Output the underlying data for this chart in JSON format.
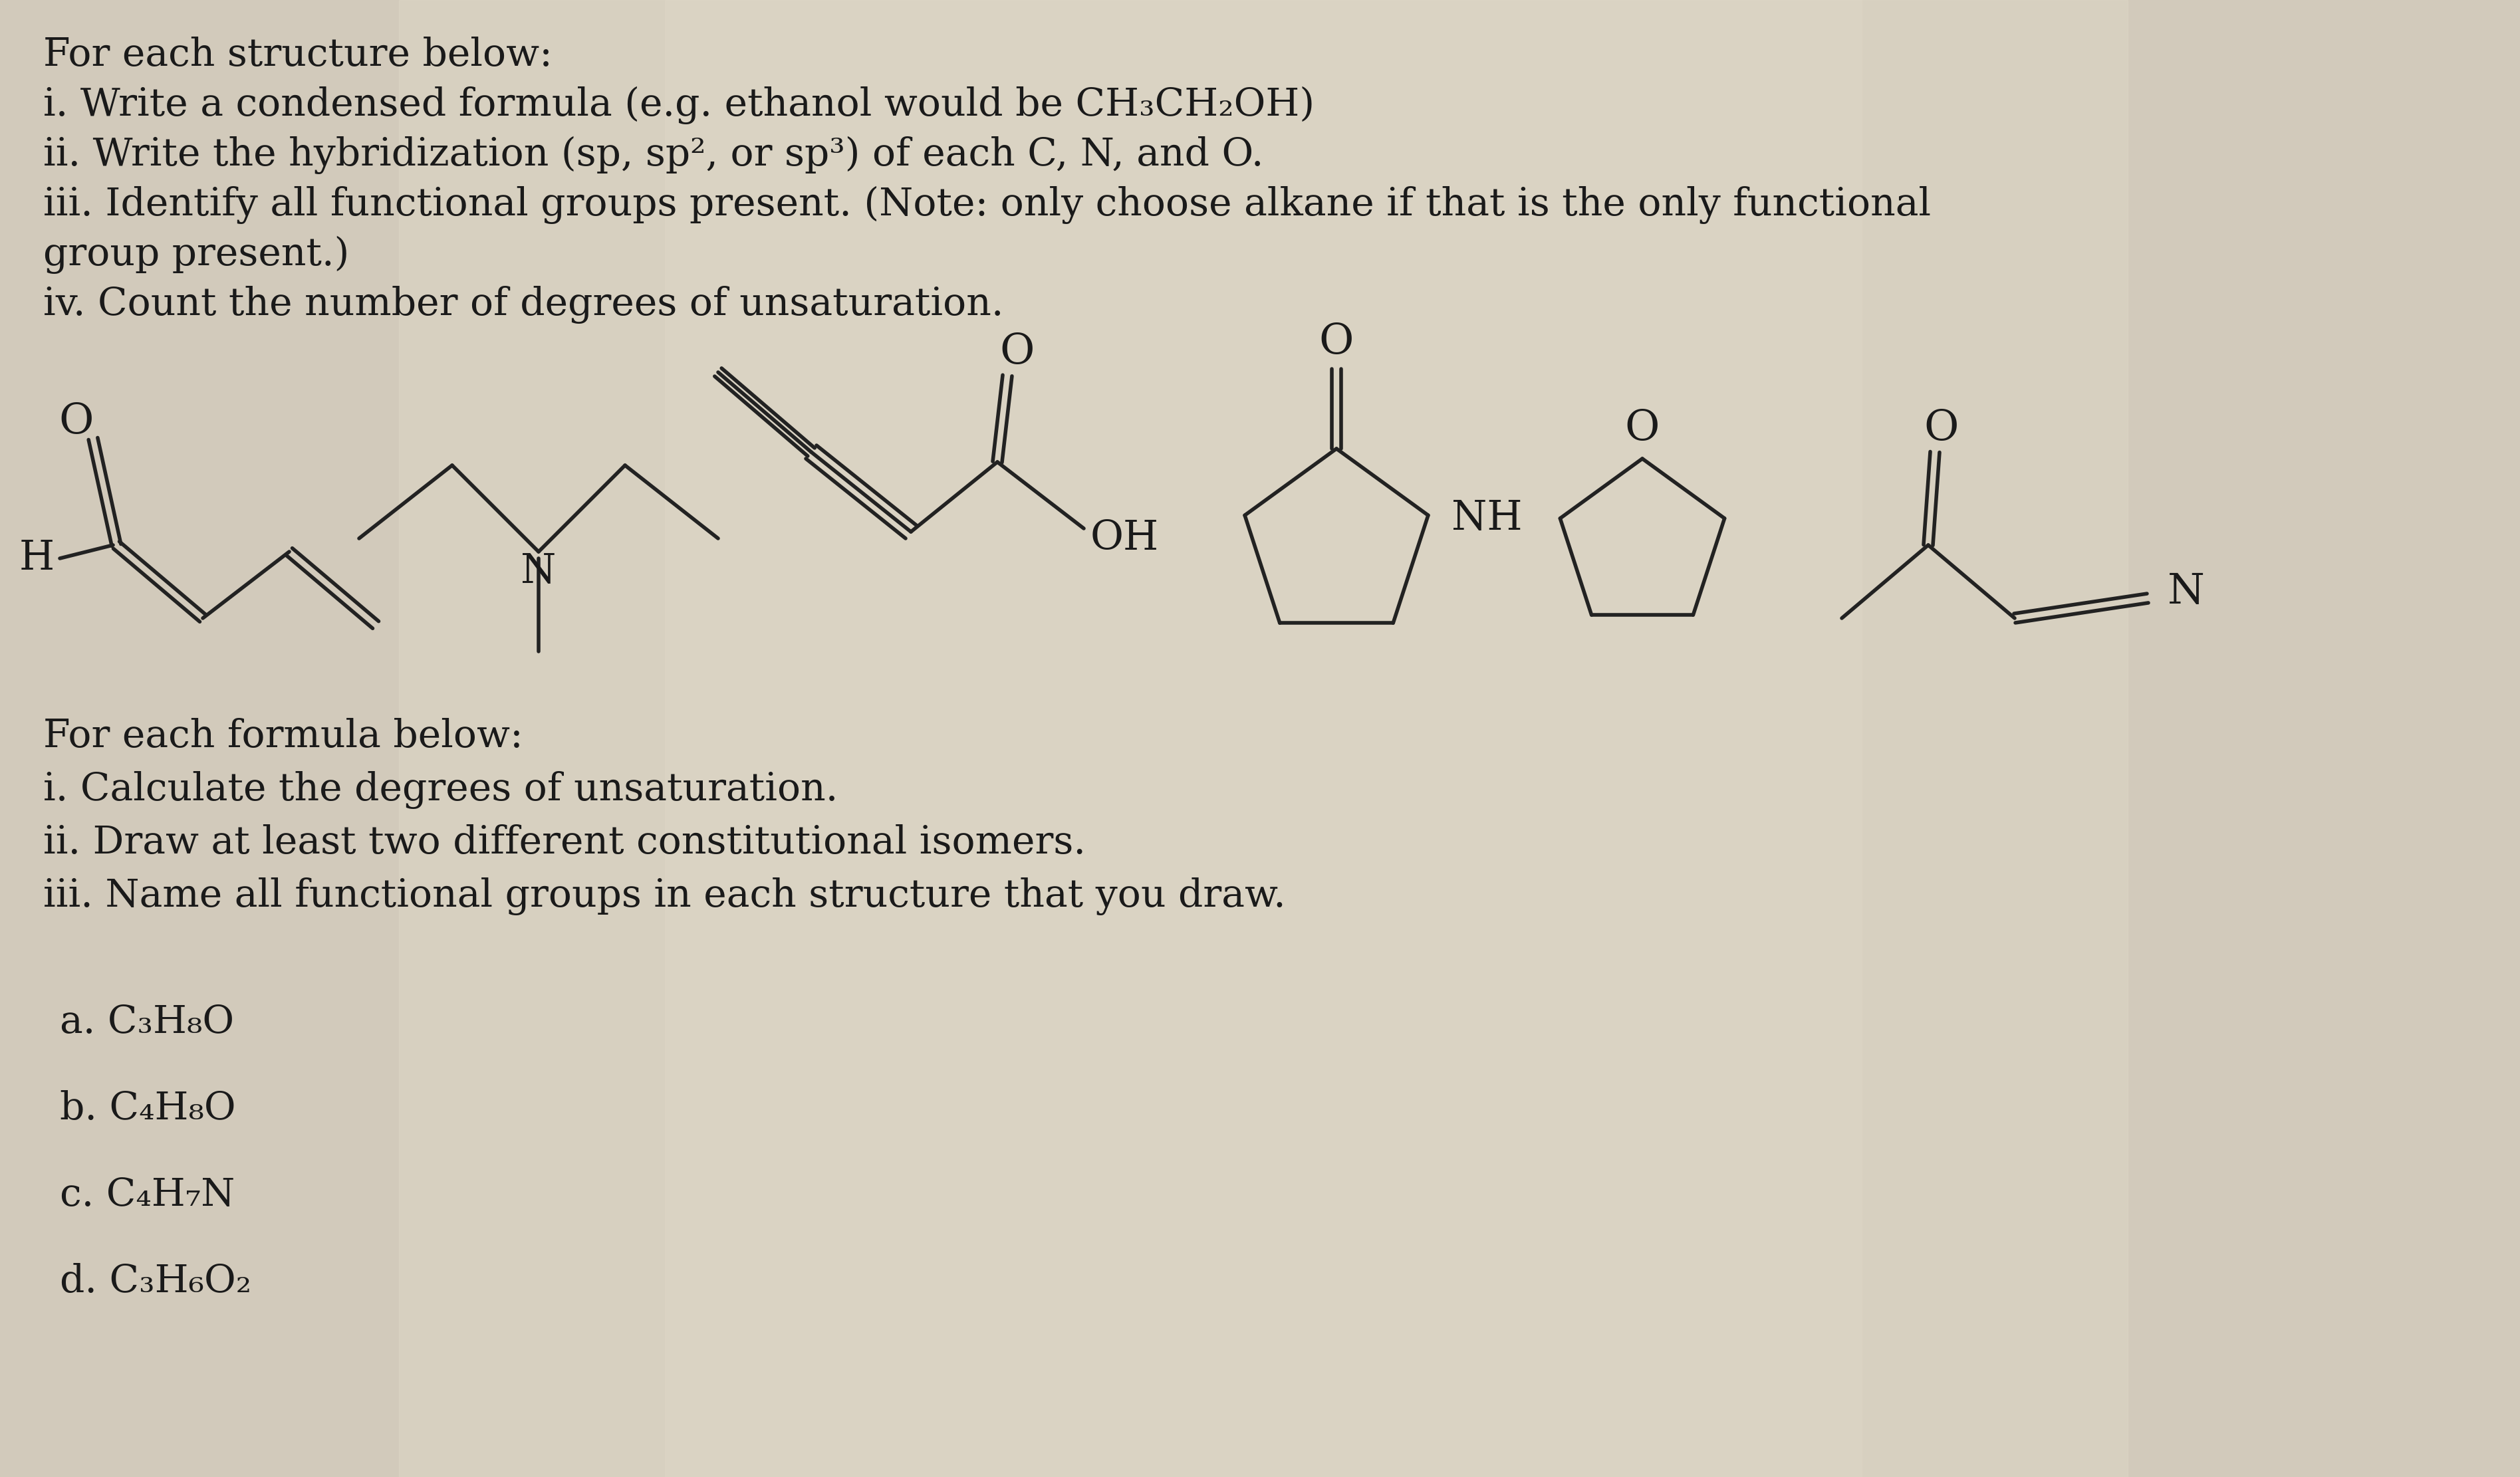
{
  "bg_color_top": "#c8c0b0",
  "bg_color_mid": "#d0c8b8",
  "bg_color_bot": "#c0b8a8",
  "bg_color": "#ccc4b4",
  "text_color": "#1a1a1a",
  "title_lines": [
    "For each structure below:",
    "i. Write a condensed formula (e.g. ethanol would be CH₃CH₂OH)",
    "ii. Write the hybridization (sp, sp², or sp³) of each C, N, and O.",
    "iii. Identify all functional groups present. (Note: only choose alkane if that is the only functional",
    "group present.)",
    "iv. Count the number of degrees of unsaturation."
  ],
  "bottom_title_lines": [
    "For each formula below:",
    "i. Calculate the degrees of unsaturation.",
    "ii. Draw at least two different constitutional isomers.",
    "iii. Name all functional groups in each structure that you draw."
  ],
  "formulas": [
    "a. C₃H₈O",
    "b. C₄H₈O",
    "c. C₄H₇N",
    "d. C₃H₆O₂"
  ]
}
